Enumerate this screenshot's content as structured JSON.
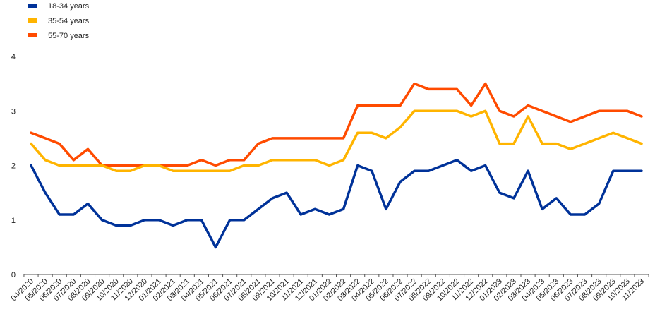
{
  "chart_data": {
    "type": "line",
    "title": "",
    "xlabel": "",
    "ylabel": "",
    "ylim": [
      0,
      4
    ],
    "yticks": [
      0,
      1,
      2,
      3,
      4
    ],
    "grid": false,
    "legend_position": "top-left",
    "categories": [
      "04/2020",
      "05/2020",
      "06/2020",
      "07/2020",
      "08/2020",
      "09/2020",
      "10/2020",
      "11/2020",
      "12/2020",
      "01/2021",
      "02/2021",
      "03/2021",
      "04/2021",
      "05/2021",
      "06/2021",
      "07/2021",
      "08/2021",
      "09/2021",
      "10/2021",
      "11/2021",
      "12/2021",
      "01/2022",
      "02/2022",
      "03/2022",
      "04/2022",
      "05/2022",
      "06/2022",
      "07/2022",
      "08/2022",
      "09/2022",
      "10/2022",
      "11/2022",
      "12/2022",
      "01/2023",
      "02/2023",
      "03/2023",
      "04/2023",
      "05/2023",
      "06/2023",
      "07/2023",
      "08/2023",
      "09/2023",
      "10/2023",
      "11/2023"
    ],
    "series": [
      {
        "name": "18-34 years",
        "color": "#003299",
        "values": [
          2.0,
          1.5,
          1.1,
          1.1,
          1.3,
          1.0,
          0.9,
          0.9,
          1.0,
          1.0,
          0.9,
          1.0,
          1.0,
          0.5,
          1.0,
          1.0,
          1.2,
          1.4,
          1.5,
          1.1,
          1.2,
          1.1,
          1.2,
          2.0,
          1.9,
          1.2,
          1.7,
          1.9,
          1.9,
          2.0,
          2.1,
          1.9,
          2.0,
          1.5,
          1.4,
          1.9,
          1.2,
          1.4,
          1.1,
          1.1,
          1.3,
          1.9,
          1.9,
          1.9
        ]
      },
      {
        "name": "35-54 years",
        "color": "#FFB400",
        "values": [
          2.4,
          2.1,
          2.0,
          2.0,
          2.0,
          2.0,
          1.9,
          1.9,
          2.0,
          2.0,
          1.9,
          1.9,
          1.9,
          1.9,
          1.9,
          2.0,
          2.0,
          2.1,
          2.1,
          2.1,
          2.1,
          2.0,
          2.1,
          2.6,
          2.6,
          2.5,
          2.7,
          3.0,
          3.0,
          3.0,
          3.0,
          2.9,
          3.0,
          2.4,
          2.4,
          2.9,
          2.4,
          2.4,
          2.3,
          2.4,
          2.5,
          2.6,
          2.5,
          2.4
        ]
      },
      {
        "name": "55-70 years",
        "color": "#FF4B00",
        "values": [
          2.6,
          2.5,
          2.4,
          2.1,
          2.3,
          2.0,
          2.0,
          2.0,
          2.0,
          2.0,
          2.0,
          2.0,
          2.1,
          2.0,
          2.1,
          2.1,
          2.4,
          2.5,
          2.5,
          2.5,
          2.5,
          2.5,
          2.5,
          3.1,
          3.1,
          3.1,
          3.1,
          3.5,
          3.4,
          3.4,
          3.4,
          3.1,
          3.5,
          3.0,
          2.9,
          3.1,
          3.0,
          2.9,
          2.8,
          2.9,
          3.0,
          3.0,
          3.0,
          2.9
        ]
      }
    ]
  }
}
